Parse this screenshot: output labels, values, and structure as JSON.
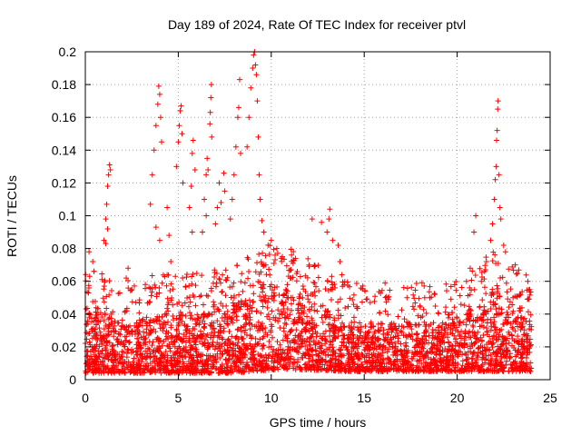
{
  "chart_data": {
    "type": "scatter",
    "title": "Day 189 of 2024, Rate Of TEC Index for receiver ptvl",
    "xlabel": "GPS time / hours",
    "ylabel": "ROTI / TECUs",
    "xlim": [
      0,
      25
    ],
    "ylim": [
      0,
      0.2
    ],
    "xticks": [
      0,
      5,
      10,
      15,
      20,
      25
    ],
    "yticks": [
      0,
      0.02,
      0.04,
      0.06,
      0.08,
      0.1,
      0.12,
      0.14,
      0.16,
      0.18,
      0.2
    ],
    "xtick_labels": [
      "0",
      "5",
      "10",
      "15",
      "20",
      "25"
    ],
    "ytick_labels": [
      "0",
      "0.02",
      "0.04",
      "0.06",
      "0.08",
      "0.1",
      "0.12",
      "0.14",
      "0.16",
      "0.18",
      "0.2"
    ],
    "grid": true,
    "marker": "plus",
    "color": "#ff0000",
    "data_extent_hours": [
      0,
      24
    ],
    "baseline_envelope": [
      {
        "x": 0,
        "low": 0.004,
        "high": 0.045
      },
      {
        "x": 2,
        "low": 0.004,
        "high": 0.035
      },
      {
        "x": 4,
        "low": 0.004,
        "high": 0.04
      },
      {
        "x": 6,
        "low": 0.004,
        "high": 0.04
      },
      {
        "x": 8,
        "low": 0.004,
        "high": 0.045
      },
      {
        "x": 10,
        "low": 0.006,
        "high": 0.06
      },
      {
        "x": 12,
        "low": 0.006,
        "high": 0.05
      },
      {
        "x": 14,
        "low": 0.005,
        "high": 0.035
      },
      {
        "x": 16,
        "low": 0.005,
        "high": 0.035
      },
      {
        "x": 18,
        "low": 0.005,
        "high": 0.035
      },
      {
        "x": 20,
        "low": 0.005,
        "high": 0.035
      },
      {
        "x": 22,
        "low": 0.005,
        "high": 0.055
      },
      {
        "x": 24,
        "low": 0.005,
        "high": 0.04
      }
    ],
    "notable_points": [
      {
        "x": 0.2,
        "y": 0.078
      },
      {
        "x": 0.4,
        "y": 0.072
      },
      {
        "x": 1.0,
        "y": 0.085
      },
      {
        "x": 1.1,
        "y": 0.098
      },
      {
        "x": 1.15,
        "y": 0.107
      },
      {
        "x": 1.2,
        "y": 0.118
      },
      {
        "x": 1.25,
        "y": 0.125
      },
      {
        "x": 1.3,
        "y": 0.131
      },
      {
        "x": 1.35,
        "y": 0.128
      },
      {
        "x": 1.1,
        "y": 0.083
      },
      {
        "x": 1.2,
        "y": 0.092
      },
      {
        "x": 2.2,
        "y": 0.062
      },
      {
        "x": 2.3,
        "y": 0.068
      },
      {
        "x": 3.5,
        "y": 0.107
      },
      {
        "x": 3.6,
        "y": 0.125
      },
      {
        "x": 3.7,
        "y": 0.14
      },
      {
        "x": 3.8,
        "y": 0.155
      },
      {
        "x": 3.9,
        "y": 0.168
      },
      {
        "x": 3.95,
        "y": 0.179
      },
      {
        "x": 4.0,
        "y": 0.174
      },
      {
        "x": 4.05,
        "y": 0.16
      },
      {
        "x": 4.1,
        "y": 0.145
      },
      {
        "x": 3.8,
        "y": 0.093
      },
      {
        "x": 4.0,
        "y": 0.085
      },
      {
        "x": 4.4,
        "y": 0.105
      },
      {
        "x": 4.5,
        "y": 0.088
      },
      {
        "x": 4.6,
        "y": 0.072
      },
      {
        "x": 4.9,
        "y": 0.13
      },
      {
        "x": 5.0,
        "y": 0.145
      },
      {
        "x": 5.05,
        "y": 0.155
      },
      {
        "x": 5.1,
        "y": 0.164
      },
      {
        "x": 5.15,
        "y": 0.167
      },
      {
        "x": 5.2,
        "y": 0.15
      },
      {
        "x": 5.25,
        "y": 0.12
      },
      {
        "x": 5.6,
        "y": 0.105
      },
      {
        "x": 5.7,
        "y": 0.118
      },
      {
        "x": 5.75,
        "y": 0.138
      },
      {
        "x": 5.8,
        "y": 0.146
      },
      {
        "x": 5.9,
        "y": 0.128
      },
      {
        "x": 5.75,
        "y": 0.09
      },
      {
        "x": 6.3,
        "y": 0.09
      },
      {
        "x": 6.4,
        "y": 0.11
      },
      {
        "x": 6.5,
        "y": 0.125
      },
      {
        "x": 6.55,
        "y": 0.135
      },
      {
        "x": 6.6,
        "y": 0.128
      },
      {
        "x": 6.5,
        "y": 0.1
      },
      {
        "x": 6.7,
        "y": 0.156
      },
      {
        "x": 6.72,
        "y": 0.163
      },
      {
        "x": 6.75,
        "y": 0.172
      },
      {
        "x": 6.78,
        "y": 0.18
      },
      {
        "x": 6.8,
        "y": 0.148
      },
      {
        "x": 7.0,
        "y": 0.095
      },
      {
        "x": 7.1,
        "y": 0.105
      },
      {
        "x": 7.2,
        "y": 0.12
      },
      {
        "x": 7.3,
        "y": 0.108
      },
      {
        "x": 7.45,
        "y": 0.126
      },
      {
        "x": 7.5,
        "y": 0.115
      },
      {
        "x": 7.8,
        "y": 0.098
      },
      {
        "x": 7.9,
        "y": 0.11
      },
      {
        "x": 8.0,
        "y": 0.125
      },
      {
        "x": 8.1,
        "y": 0.142
      },
      {
        "x": 8.2,
        "y": 0.16
      },
      {
        "x": 8.25,
        "y": 0.166
      },
      {
        "x": 8.3,
        "y": 0.183
      },
      {
        "x": 8.35,
        "y": 0.138
      },
      {
        "x": 8.7,
        "y": 0.142
      },
      {
        "x": 8.8,
        "y": 0.16
      },
      {
        "x": 8.9,
        "y": 0.178
      },
      {
        "x": 9.0,
        "y": 0.19
      },
      {
        "x": 9.05,
        "y": 0.198
      },
      {
        "x": 9.1,
        "y": 0.2
      },
      {
        "x": 9.15,
        "y": 0.192
      },
      {
        "x": 9.2,
        "y": 0.186
      },
      {
        "x": 9.25,
        "y": 0.17
      },
      {
        "x": 9.3,
        "y": 0.148
      },
      {
        "x": 9.35,
        "y": 0.125
      },
      {
        "x": 9.4,
        "y": 0.11
      },
      {
        "x": 9.5,
        "y": 0.097
      },
      {
        "x": 9.6,
        "y": 0.09
      },
      {
        "x": 10.0,
        "y": 0.085
      },
      {
        "x": 10.3,
        "y": 0.08
      },
      {
        "x": 10.6,
        "y": 0.075
      },
      {
        "x": 12.2,
        "y": 0.098
      },
      {
        "x": 12.7,
        "y": 0.096
      },
      {
        "x": 13.0,
        "y": 0.09
      },
      {
        "x": 13.1,
        "y": 0.098
      },
      {
        "x": 13.15,
        "y": 0.104
      },
      {
        "x": 13.3,
        "y": 0.085
      },
      {
        "x": 13.6,
        "y": 0.082
      },
      {
        "x": 13.7,
        "y": 0.072
      },
      {
        "x": 13.8,
        "y": 0.064
      },
      {
        "x": 17.3,
        "y": 0.05
      },
      {
        "x": 18.0,
        "y": 0.045
      },
      {
        "x": 18.8,
        "y": 0.052
      },
      {
        "x": 20.5,
        "y": 0.06
      },
      {
        "x": 20.7,
        "y": 0.068
      },
      {
        "x": 20.9,
        "y": 0.09
      },
      {
        "x": 21.0,
        "y": 0.1
      },
      {
        "x": 21.3,
        "y": 0.06
      },
      {
        "x": 21.8,
        "y": 0.085
      },
      {
        "x": 21.9,
        "y": 0.095
      },
      {
        "x": 22.0,
        "y": 0.11
      },
      {
        "x": 22.05,
        "y": 0.122
      },
      {
        "x": 22.1,
        "y": 0.13
      },
      {
        "x": 22.12,
        "y": 0.146
      },
      {
        "x": 22.15,
        "y": 0.152
      },
      {
        "x": 22.18,
        "y": 0.165
      },
      {
        "x": 22.2,
        "y": 0.17
      },
      {
        "x": 22.25,
        "y": 0.125
      },
      {
        "x": 22.3,
        "y": 0.105
      },
      {
        "x": 22.35,
        "y": 0.098
      },
      {
        "x": 22.5,
        "y": 0.082
      },
      {
        "x": 22.6,
        "y": 0.078
      },
      {
        "x": 23.8,
        "y": 0.06
      },
      {
        "x": 23.9,
        "y": 0.055
      }
    ]
  }
}
